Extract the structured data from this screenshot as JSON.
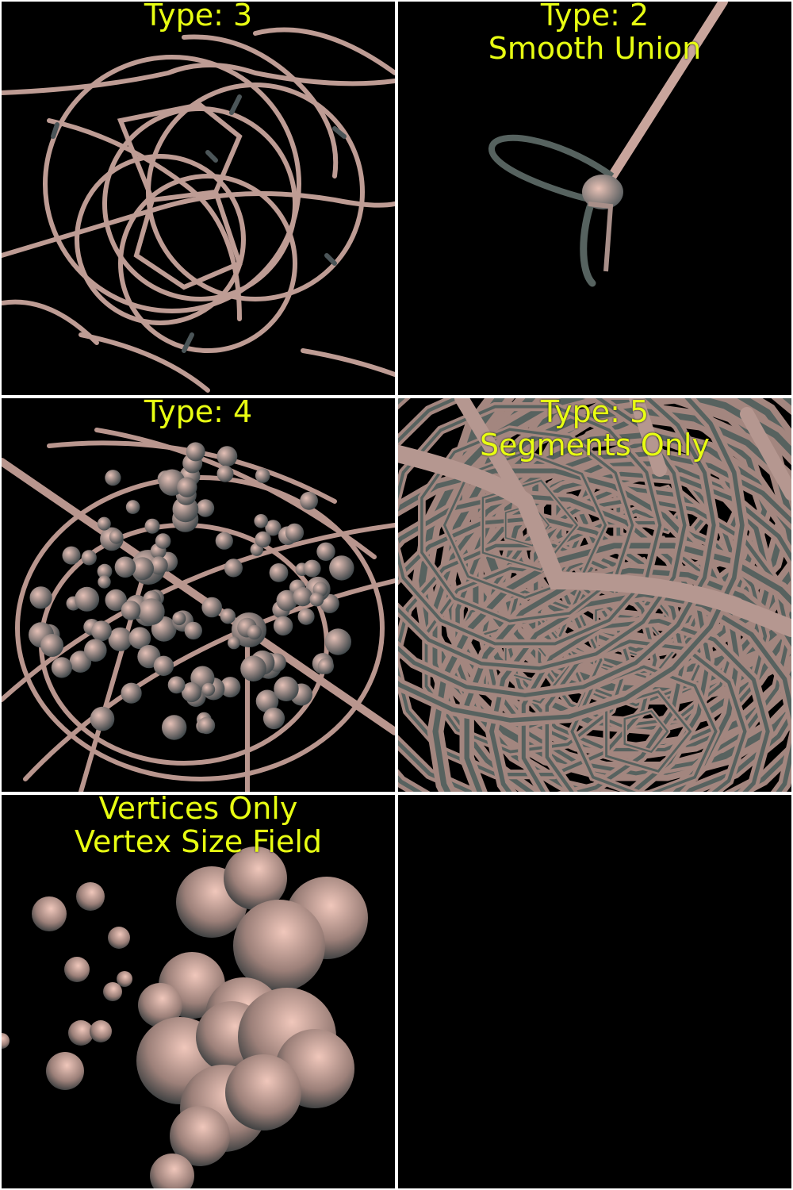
{
  "panels": [
    {
      "lines": [
        "Type: 3"
      ],
      "scene": "thin-tube-lattice"
    },
    {
      "lines": [
        "Type: 2",
        "Smooth Union"
      ],
      "scene": "smooth-union-tripod"
    },
    {
      "lines": [
        "Type: 4"
      ],
      "scene": "tubes-with-spheres"
    },
    {
      "lines": [
        "Type: 5",
        "Segments Only"
      ],
      "scene": "thick-segment-lattice"
    },
    {
      "lines": [
        "Vertices Only",
        "Vertex Size Field"
      ],
      "scene": "sphere-cluster"
    },
    {
      "lines": [],
      "scene": "empty"
    }
  ],
  "colors": {
    "caption": "#e8ff12",
    "tube": "#c9a59c",
    "background": "#000000",
    "divider": "#ffffff"
  }
}
